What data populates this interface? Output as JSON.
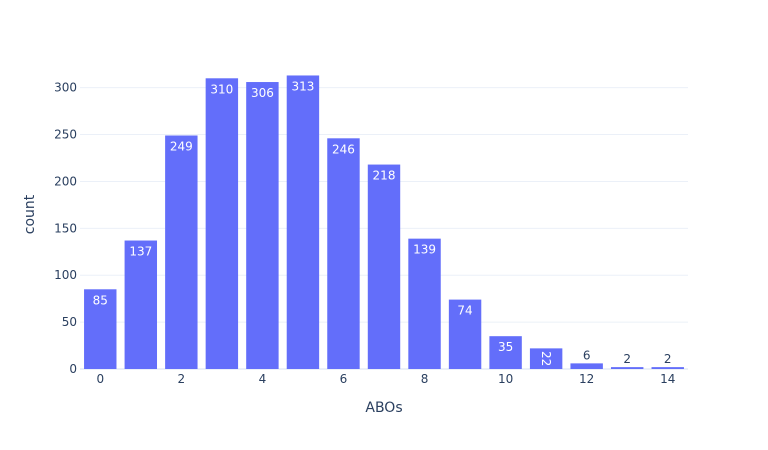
{
  "colors": {
    "bar": "#636efa",
    "background": "#ffffff",
    "grid": "#ebf0f8",
    "text": "#2a3f5f",
    "label_inside": "#ffffff"
  },
  "chart_data": {
    "type": "bar",
    "title": "",
    "xlabel": "ABOs",
    "ylabel": "count",
    "x": [
      0,
      1,
      2,
      3,
      4,
      5,
      6,
      7,
      8,
      9,
      10,
      11,
      12,
      13,
      14
    ],
    "values": [
      85,
      137,
      249,
      310,
      306,
      313,
      246,
      218,
      139,
      74,
      35,
      22,
      6,
      2,
      2
    ],
    "xlim": [
      -0.5,
      14.5
    ],
    "ylim": [
      0,
      329.5
    ],
    "xticks": [
      0,
      2,
      4,
      6,
      8,
      10,
      12,
      14
    ],
    "yticks": [
      0,
      50,
      100,
      150,
      200,
      250,
      300
    ],
    "grid": "horizontal",
    "legend": "none",
    "data_labels": true
  }
}
